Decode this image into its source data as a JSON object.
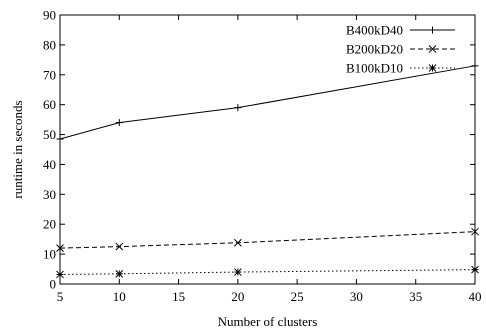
{
  "chart_data": {
    "type": "line",
    "title": "",
    "xlabel": "Number of clusters",
    "ylabel": "runtime in seconds",
    "xlim": [
      5,
      40
    ],
    "ylim": [
      0,
      90
    ],
    "xticks": [
      "5",
      "10",
      "15",
      "20",
      "25",
      "30",
      "35",
      "40"
    ],
    "yticks": [
      "0",
      "10",
      "20",
      "30",
      "40",
      "50",
      "60",
      "70",
      "80",
      "90"
    ],
    "x": [
      5,
      10,
      20,
      40
    ],
    "grid": false,
    "legend_position": "top-right",
    "series": [
      {
        "name": "B400kD40",
        "values": [
          48.5,
          54,
          59,
          73
        ],
        "line_style": "solid",
        "marker": "plus"
      },
      {
        "name": "B200kD20",
        "values": [
          12,
          12.5,
          13.8,
          17.5
        ],
        "line_style": "dashed",
        "marker": "x"
      },
      {
        "name": "B100kD10",
        "values": [
          3.2,
          3.4,
          4,
          4.8
        ],
        "line_style": "dotted",
        "marker": "star"
      }
    ]
  }
}
